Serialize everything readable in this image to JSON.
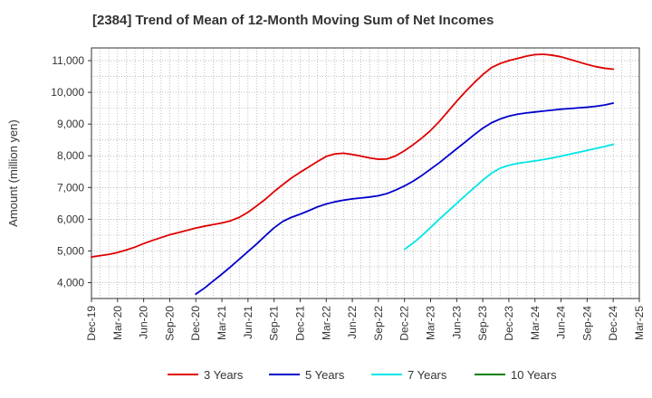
{
  "chart_data": {
    "type": "line",
    "title": "[2384]  Trend of Mean of 12-Month Moving Sum of Net Incomes",
    "xlabel": "",
    "ylabel": "Amount (million yen)",
    "x_ticks": [
      "Dec-19",
      "Mar-20",
      "Jun-20",
      "Sep-20",
      "Dec-20",
      "Mar-21",
      "Jun-21",
      "Sep-21",
      "Dec-21",
      "Mar-22",
      "Jun-22",
      "Sep-22",
      "Dec-22",
      "Mar-23",
      "Jun-23",
      "Sep-23",
      "Dec-23",
      "Mar-24",
      "Jun-24",
      "Sep-24",
      "Dec-24",
      "Mar-25"
    ],
    "y_ticks": [
      4000,
      5000,
      6000,
      7000,
      8000,
      9000,
      10000,
      11000
    ],
    "y_tick_labels": [
      "4,000",
      "5,000",
      "6,000",
      "7,000",
      "8,000",
      "9,000",
      "10,000",
      "11,000"
    ],
    "ylim": [
      3500,
      11400
    ],
    "grid": true,
    "legend_position": "bottom",
    "series": [
      {
        "name": "3 Years",
        "color": "#e00000",
        "x": [
          "2019-12",
          "2020-01",
          "2020-02",
          "2020-03",
          "2020-04",
          "2020-05",
          "2020-06",
          "2020-07",
          "2020-08",
          "2020-09",
          "2020-10",
          "2020-11",
          "2020-12",
          "2021-01",
          "2021-02",
          "2021-03",
          "2021-04",
          "2021-05",
          "2021-06",
          "2021-07",
          "2021-08",
          "2021-09",
          "2021-10",
          "2021-11",
          "2021-12",
          "2022-01",
          "2022-02",
          "2022-03",
          "2022-04",
          "2022-05",
          "2022-06",
          "2022-07",
          "2022-08",
          "2022-09",
          "2022-10",
          "2022-11",
          "2022-12",
          "2023-01",
          "2023-02",
          "2023-03",
          "2023-04",
          "2023-05",
          "2023-06",
          "2023-07",
          "2023-08",
          "2023-09",
          "2023-10",
          "2023-11",
          "2023-12",
          "2024-01",
          "2024-02",
          "2024-03",
          "2024-04",
          "2024-05",
          "2024-06",
          "2024-07",
          "2024-08",
          "2024-09",
          "2024-10",
          "2024-11",
          "2024-12"
        ],
        "values": [
          4810,
          4850,
          4890,
          4950,
          5030,
          5120,
          5230,
          5330,
          5420,
          5510,
          5580,
          5650,
          5720,
          5780,
          5830,
          5880,
          5950,
          6060,
          6220,
          6420,
          6630,
          6870,
          7090,
          7300,
          7480,
          7650,
          7820,
          7980,
          8060,
          8080,
          8040,
          7990,
          7930,
          7890,
          7900,
          8000,
          8160,
          8350,
          8560,
          8800,
          9080,
          9400,
          9720,
          10020,
          10300,
          10560,
          10780,
          10910,
          11000,
          11070,
          11140,
          11190,
          11200,
          11170,
          11120,
          11040,
          10960,
          10880,
          10810,
          10760,
          10730
        ]
      },
      {
        "name": "5 Years",
        "color": "#0000cc",
        "x": [
          "2020-12",
          "2021-01",
          "2021-02",
          "2021-03",
          "2021-04",
          "2021-05",
          "2021-06",
          "2021-07",
          "2021-08",
          "2021-09",
          "2021-10",
          "2021-11",
          "2021-12",
          "2022-01",
          "2022-02",
          "2022-03",
          "2022-04",
          "2022-05",
          "2022-06",
          "2022-07",
          "2022-08",
          "2022-09",
          "2022-10",
          "2022-11",
          "2022-12",
          "2023-01",
          "2023-02",
          "2023-03",
          "2023-04",
          "2023-05",
          "2023-06",
          "2023-07",
          "2023-08",
          "2023-09",
          "2023-10",
          "2023-11",
          "2023-12",
          "2024-01",
          "2024-02",
          "2024-03",
          "2024-04",
          "2024-05",
          "2024-06",
          "2024-07",
          "2024-08",
          "2024-09",
          "2024-10",
          "2024-11",
          "2024-12"
        ],
        "values": [
          3640,
          3830,
          4050,
          4270,
          4500,
          4740,
          4980,
          5220,
          5480,
          5730,
          5930,
          6060,
          6160,
          6270,
          6390,
          6480,
          6550,
          6600,
          6640,
          6670,
          6700,
          6740,
          6810,
          6920,
          7050,
          7200,
          7380,
          7580,
          7780,
          8000,
          8220,
          8440,
          8660,
          8870,
          9040,
          9160,
          9250,
          9310,
          9350,
          9380,
          9410,
          9440,
          9470,
          9490,
          9510,
          9530,
          9560,
          9600,
          9660
        ]
      },
      {
        "name": "7 Years",
        "color": "#00e5e5",
        "x": [
          "2022-12",
          "2023-01",
          "2023-02",
          "2023-03",
          "2023-04",
          "2023-05",
          "2023-06",
          "2023-07",
          "2023-08",
          "2023-09",
          "2023-10",
          "2023-11",
          "2023-12",
          "2024-01",
          "2024-02",
          "2024-03",
          "2024-04",
          "2024-05",
          "2024-06",
          "2024-07",
          "2024-08",
          "2024-09",
          "2024-10",
          "2024-11",
          "2024-12"
        ],
        "values": [
          5050,
          5250,
          5480,
          5740,
          6000,
          6250,
          6500,
          6750,
          6990,
          7230,
          7450,
          7610,
          7700,
          7760,
          7800,
          7840,
          7880,
          7930,
          7990,
          8050,
          8110,
          8170,
          8230,
          8290,
          8360
        ]
      },
      {
        "name": "10 Years",
        "color": "#008000",
        "x": [],
        "values": []
      }
    ]
  }
}
